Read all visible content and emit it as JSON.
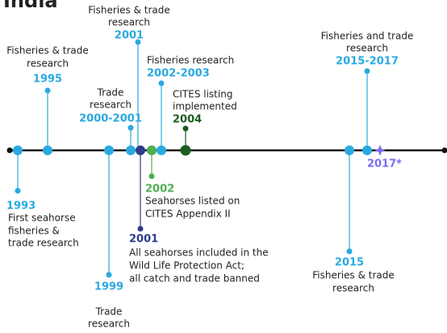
{
  "title": "India",
  "events": [
    {
      "year": "1993",
      "lines": [
        "First seahorse",
        "fisheries &",
        "trade research"
      ]
    },
    {
      "year": "1995",
      "lines": [
        "Fisheries & trade",
        "research"
      ]
    },
    {
      "year": "1999",
      "lines": [
        "Trade",
        "research"
      ]
    },
    {
      "year": "2000-2001",
      "lines": [
        "Trade",
        "research"
      ]
    },
    {
      "year": "2001",
      "lines": [
        "Fisheries & trade",
        "research"
      ]
    },
    {
      "year": "2001",
      "lines": [
        "All seahorses included in the",
        "Wild Life Protection Act;",
        "all catch and trade banned"
      ]
    },
    {
      "year": "2002",
      "lines": [
        "Seahorses listed on",
        "CITES Appendix II"
      ]
    },
    {
      "year": "2002-2003",
      "lines": [
        "Fisheries research"
      ]
    },
    {
      "year": "2004",
      "lines": [
        "CITES listing",
        "implemented"
      ]
    },
    {
      "year": "2015",
      "lines": [
        "Fisheries & trade",
        "research"
      ]
    },
    {
      "year": "2015-2017",
      "lines": [
        "Fisheries and trade",
        "research"
      ]
    },
    {
      "year": "2017*"
    }
  ]
}
